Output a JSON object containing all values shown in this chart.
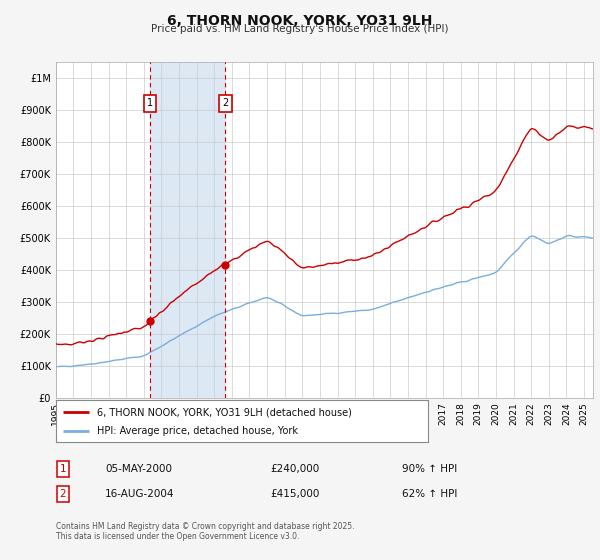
{
  "title": "6, THORN NOOK, YORK, YO31 9LH",
  "subtitle": "Price paid vs. HM Land Registry's House Price Index (HPI)",
  "background_color": "#f5f5f5",
  "plot_bg_color": "#ffffff",
  "grid_color": "#cccccc",
  "red_line_color": "#cc0000",
  "blue_line_color": "#7aade0",
  "shade_color": "#dce9f5",
  "transaction1_date_num": 2000.35,
  "transaction2_date_num": 2004.62,
  "transaction1_price": 240000,
  "transaction2_price": 415000,
  "transaction1_label": "05-MAY-2000",
  "transaction1_price_str": "£240,000",
  "transaction1_hpi": "90% ↑ HPI",
  "transaction2_label": "16-AUG-2004",
  "transaction2_price_str": "£415,000",
  "transaction2_hpi": "62% ↑ HPI",
  "legend_label_red": "6, THORN NOOK, YORK, YO31 9LH (detached house)",
  "legend_label_blue": "HPI: Average price, detached house, York",
  "footer_text": "Contains HM Land Registry data © Crown copyright and database right 2025.\nThis data is licensed under the Open Government Licence v3.0.",
  "xmin": 1995,
  "xmax": 2025.5,
  "ymin": 0,
  "ymax": 1050000,
  "yticks": [
    0,
    100000,
    200000,
    300000,
    400000,
    500000,
    600000,
    700000,
    800000,
    900000,
    1000000
  ],
  "ytick_labels": [
    "£0",
    "£100K",
    "£200K",
    "£300K",
    "£400K",
    "£500K",
    "£600K",
    "£700K",
    "£800K",
    "£900K",
    "£1M"
  ],
  "xticks": [
    1995,
    1996,
    1997,
    1998,
    1999,
    2000,
    2001,
    2002,
    2003,
    2004,
    2005,
    2006,
    2007,
    2008,
    2009,
    2010,
    2011,
    2012,
    2013,
    2014,
    2015,
    2016,
    2017,
    2018,
    2019,
    2020,
    2021,
    2022,
    2023,
    2024,
    2025
  ]
}
